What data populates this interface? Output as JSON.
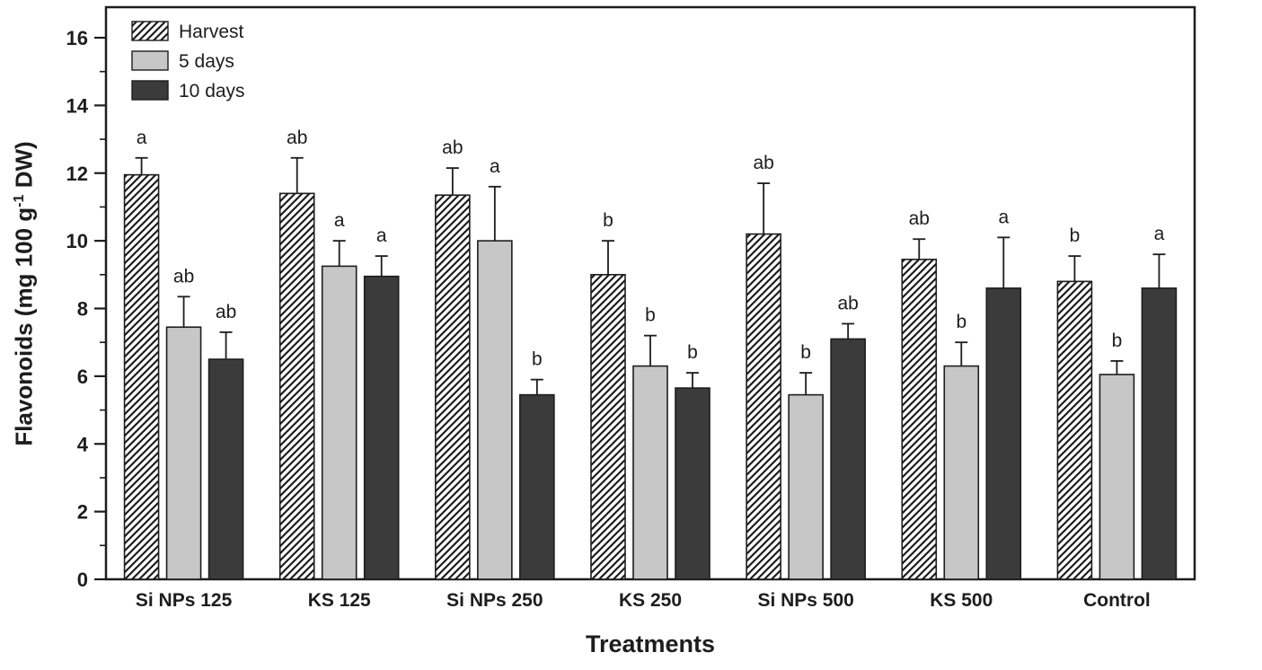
{
  "chart_data": {
    "type": "bar",
    "title": "",
    "xlabel": "Treatments",
    "ylabel": "Flavonoids (mg 100 g⁻¹ DW)",
    "ylabel_parts": {
      "prefix": "Flavonoids (mg 100 g",
      "sup": "-1",
      "suffix": " DW)"
    },
    "ylim": [
      0,
      16
    ],
    "y_major_ticks": [
      0,
      2,
      4,
      6,
      8,
      10,
      12,
      14,
      16
    ],
    "y_minor_tick_step": 1,
    "grid": "off",
    "legend_position": "top-left",
    "error_bars": "upper, with caps",
    "colors": {
      "ink": "#1d1d1d",
      "hatch_bg": "#ffffff",
      "series_5_days": "#c7c7c7",
      "series_10_days": "#3b3b3b"
    },
    "categories": [
      "Si NPs 125",
      "KS 125",
      "Si NPs 250",
      "KS 250",
      "Si NPs 500",
      "KS 500",
      "Control"
    ],
    "series": [
      {
        "name": "Harvest",
        "style": "hatched",
        "color": "#ffffff",
        "values": [
          11.95,
          11.4,
          11.35,
          9.0,
          10.2,
          9.45,
          8.8
        ],
        "errors": [
          0.5,
          1.05,
          0.8,
          1.0,
          1.5,
          0.6,
          0.75
        ],
        "letters": [
          "a",
          "ab",
          "ab",
          "b",
          "ab",
          "ab",
          "b"
        ]
      },
      {
        "name": "5 days",
        "style": "solid",
        "color": "#c7c7c7",
        "values": [
          7.45,
          9.25,
          10.0,
          6.3,
          5.45,
          6.3,
          6.05
        ],
        "errors": [
          0.9,
          0.75,
          1.6,
          0.9,
          0.65,
          0.7,
          0.4
        ],
        "letters": [
          "ab",
          "a",
          "a",
          "b",
          "b",
          "b",
          "b"
        ]
      },
      {
        "name": "10 days",
        "style": "solid",
        "color": "#3b3b3b",
        "values": [
          6.5,
          8.95,
          5.45,
          5.65,
          7.1,
          8.6,
          8.6
        ],
        "errors": [
          0.8,
          0.6,
          0.45,
          0.45,
          0.45,
          1.5,
          1.0
        ],
        "letters": [
          "ab",
          "a",
          "b",
          "b",
          "ab",
          "a",
          "a"
        ]
      }
    ]
  }
}
